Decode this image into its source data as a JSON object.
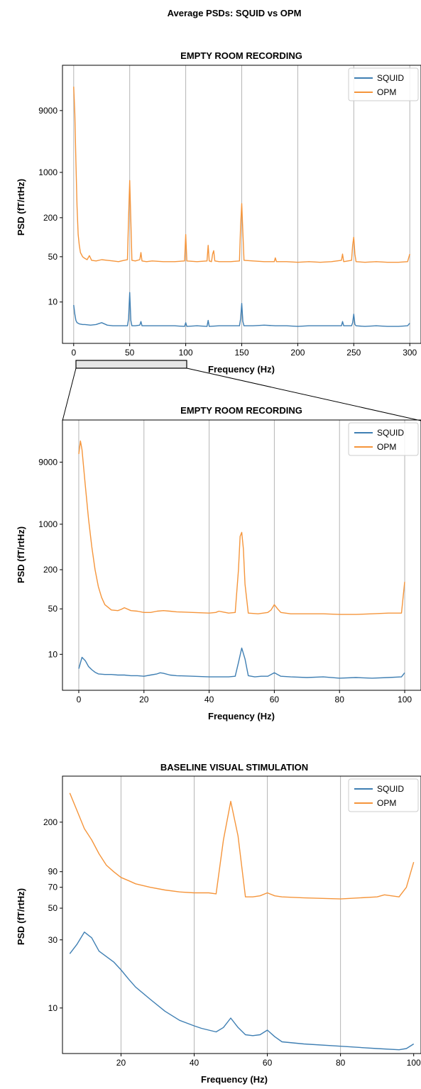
{
  "figure_title": "Average PSDs: SQUID vs OPM",
  "colors": {
    "squid": "#3f7fb3",
    "opm": "#f5953b",
    "grid": "#b5b5b5",
    "zoom_box_fill": "#e6e6e6"
  },
  "chart_data": [
    {
      "type": "line",
      "title": "EMPTY ROOM RECORDING",
      "xlabel": "Frequency (Hz)",
      "ylabel": "PSD (fT/rtHz)",
      "yscale": "log",
      "xlim": [
        -10,
        310
      ],
      "ylim": [
        2.3,
        45000
      ],
      "xticks": [
        0,
        50,
        100,
        150,
        200,
        250,
        300
      ],
      "yticks": [
        10,
        50,
        200,
        1000,
        9000
      ],
      "vgrid": [
        0,
        50,
        100,
        150,
        200,
        250,
        300
      ],
      "grid": "vertical",
      "legend": "top-right",
      "zoom_range": [
        0,
        100
      ],
      "series": [
        {
          "name": "SQUID",
          "color": "#3f7fb3",
          "x": [
            0,
            1,
            2,
            3,
            5,
            8,
            10,
            15,
            20,
            25,
            30,
            35,
            40,
            45,
            48,
            49,
            50,
            51,
            52,
            55,
            59,
            60,
            61,
            65,
            70,
            80,
            90,
            99,
            100,
            101,
            110,
            119,
            120,
            121,
            130,
            140,
            148,
            149,
            150,
            151,
            152,
            160,
            170,
            180,
            190,
            200,
            210,
            220,
            230,
            239,
            240,
            241,
            248,
            249,
            250,
            251,
            252,
            260,
            270,
            280,
            290,
            298,
            300
          ],
          "y": [
            9.0,
            6.5,
            5.2,
            4.8,
            4.6,
            4.5,
            4.5,
            4.4,
            4.5,
            4.8,
            4.4,
            4.3,
            4.3,
            4.3,
            4.3,
            5.5,
            14.0,
            5.2,
            4.3,
            4.3,
            4.4,
            5.0,
            4.3,
            4.3,
            4.3,
            4.3,
            4.3,
            4.2,
            4.8,
            4.2,
            4.3,
            4.2,
            5.2,
            4.2,
            4.3,
            4.3,
            4.3,
            5.5,
            9.5,
            5.0,
            4.3,
            4.3,
            4.4,
            4.3,
            4.3,
            4.2,
            4.3,
            4.3,
            4.3,
            4.3,
            5.0,
            4.3,
            4.3,
            4.8,
            6.5,
            4.5,
            4.3,
            4.2,
            4.3,
            4.2,
            4.2,
            4.3,
            4.7
          ]
        },
        {
          "name": "OPM",
          "color": "#f5953b",
          "x": [
            0,
            1,
            2,
            3,
            4,
            5,
            6,
            8,
            10,
            12,
            14,
            16,
            20,
            25,
            30,
            35,
            40,
            45,
            48,
            49,
            50,
            51,
            52,
            55,
            59,
            60,
            61,
            65,
            70,
            80,
            90,
            99,
            100,
            101,
            110,
            119,
            120,
            121,
            123,
            124,
            125,
            126,
            130,
            140,
            148,
            149,
            150,
            151,
            152,
            160,
            170,
            179,
            180,
            181,
            190,
            200,
            210,
            220,
            230,
            239,
            240,
            241,
            248,
            249,
            250,
            251,
            252,
            260,
            270,
            280,
            290,
            298,
            300
          ],
          "y": [
            21000,
            8000,
            1500,
            300,
            110,
            75,
            58,
            50,
            47,
            45,
            52,
            44,
            43,
            45,
            44,
            43,
            42,
            44,
            45,
            200,
            750,
            180,
            44,
            43,
            45,
            58,
            43,
            42,
            43,
            42,
            42,
            43,
            110,
            43,
            42,
            43,
            75,
            43,
            42,
            55,
            62,
            43,
            42,
            42,
            43,
            150,
            330,
            120,
            44,
            43,
            42,
            42,
            48,
            42,
            42,
            41,
            42,
            41,
            42,
            44,
            55,
            42,
            44,
            75,
            100,
            55,
            42,
            41,
            42,
            41,
            41,
            42,
            55
          ]
        }
      ]
    },
    {
      "type": "line",
      "title": "EMPTY ROOM RECORDING",
      "xlabel": "Frequency (Hz)",
      "ylabel": "PSD (fT/rtHz)",
      "yscale": "log",
      "xlim": [
        -5,
        105
      ],
      "ylim": [
        2.8,
        40000
      ],
      "xticks": [
        0,
        20,
        40,
        60,
        80,
        100
      ],
      "yticks": [
        10,
        50,
        200,
        1000,
        9000
      ],
      "vgrid": [
        0,
        20,
        40,
        60,
        80,
        100
      ],
      "grid": "vertical",
      "legend": "top-right",
      "series": [
        {
          "name": "SQUID",
          "color": "#3f7fb3",
          "x": [
            0,
            1,
            2,
            3,
            4,
            5,
            6,
            8,
            10,
            12,
            14,
            16,
            18,
            20,
            22,
            24,
            25,
            26,
            28,
            30,
            35,
            40,
            44,
            46,
            48,
            49,
            50,
            51,
            52,
            54,
            56,
            58,
            60,
            61,
            62,
            65,
            70,
            75,
            80,
            85,
            90,
            95,
            99,
            100
          ],
          "y": [
            6.0,
            9.0,
            8.0,
            6.5,
            5.8,
            5.3,
            5.0,
            4.9,
            4.9,
            4.8,
            4.8,
            4.7,
            4.7,
            4.6,
            4.8,
            5.0,
            5.2,
            5.1,
            4.8,
            4.7,
            4.6,
            4.5,
            4.5,
            4.5,
            4.6,
            7.5,
            12.5,
            8.5,
            4.7,
            4.5,
            4.6,
            4.6,
            5.2,
            4.9,
            4.6,
            4.5,
            4.4,
            4.5,
            4.3,
            4.4,
            4.3,
            4.4,
            4.5,
            5.2
          ]
        },
        {
          "name": "OPM",
          "color": "#f5953b",
          "x": [
            0,
            0.5,
            1,
            2,
            3,
            4,
            5,
            6,
            7,
            8,
            10,
            12,
            13,
            14,
            16,
            18,
            20,
            22,
            24,
            26,
            28,
            30,
            35,
            40,
            42,
            43,
            44,
            46,
            48,
            49,
            49.5,
            50,
            50.5,
            51,
            52,
            55,
            58,
            59,
            60,
            61,
            62,
            65,
            70,
            75,
            80,
            85,
            90,
            95,
            99,
            100
          ],
          "y": [
            12000,
            19000,
            14000,
            4000,
            1200,
            450,
            200,
            110,
            75,
            58,
            48,
            47,
            49,
            52,
            47,
            46,
            44,
            44,
            46,
            47,
            46,
            45,
            44,
            43,
            44,
            46,
            45,
            43,
            44,
            200,
            650,
            750,
            420,
            120,
            43,
            42,
            44,
            48,
            58,
            50,
            44,
            42,
            42,
            42,
            41,
            41,
            42,
            43,
            43,
            130
          ]
        }
      ]
    },
    {
      "type": "line",
      "title": "BASELINE VISUAL STIMULATION",
      "xlabel": "Frequency (Hz)",
      "ylabel": "PSD (fT/rtHz)",
      "yscale": "log",
      "xlim": [
        4,
        102
      ],
      "ylim": [
        4.8,
        420
      ],
      "xticks": [
        20,
        40,
        60,
        80,
        100
      ],
      "yticks": [
        10,
        30,
        50,
        70,
        90,
        200
      ],
      "vgrid": [
        20,
        40,
        60,
        80
      ],
      "grid": "vertical",
      "legend": "top-right",
      "series": [
        {
          "name": "SQUID",
          "color": "#3f7fb3",
          "x": [
            6,
            8,
            10,
            12,
            14,
            18,
            20,
            22,
            24,
            28,
            32,
            36,
            40,
            42,
            44,
            46,
            48,
            50,
            52,
            54,
            56,
            58,
            60,
            62,
            64,
            70,
            80,
            90,
            96,
            98,
            100
          ],
          "y": [
            24,
            28,
            34,
            31,
            25,
            21,
            18.5,
            16,
            14,
            11.5,
            9.5,
            8.2,
            7.5,
            7.2,
            7.0,
            6.8,
            7.3,
            8.5,
            7.3,
            6.5,
            6.4,
            6.5,
            7.0,
            6.3,
            5.8,
            5.6,
            5.4,
            5.2,
            5.1,
            5.2,
            5.6
          ]
        },
        {
          "name": "OPM",
          "color": "#f5953b",
          "x": [
            6,
            8,
            10,
            12,
            14,
            16,
            18,
            20,
            22,
            24,
            28,
            32,
            36,
            40,
            44,
            46,
            48,
            50,
            52,
            54,
            56,
            58,
            60,
            62,
            64,
            70,
            80,
            90,
            92,
            96,
            98,
            100
          ],
          "y": [
            320,
            240,
            180,
            150,
            120,
            100,
            90,
            82,
            78,
            74,
            70,
            67,
            65,
            64,
            64,
            63,
            150,
            280,
            160,
            60,
            60,
            61,
            64,
            61,
            60,
            59,
            58,
            60,
            62,
            60,
            70,
            105
          ]
        }
      ]
    }
  ]
}
